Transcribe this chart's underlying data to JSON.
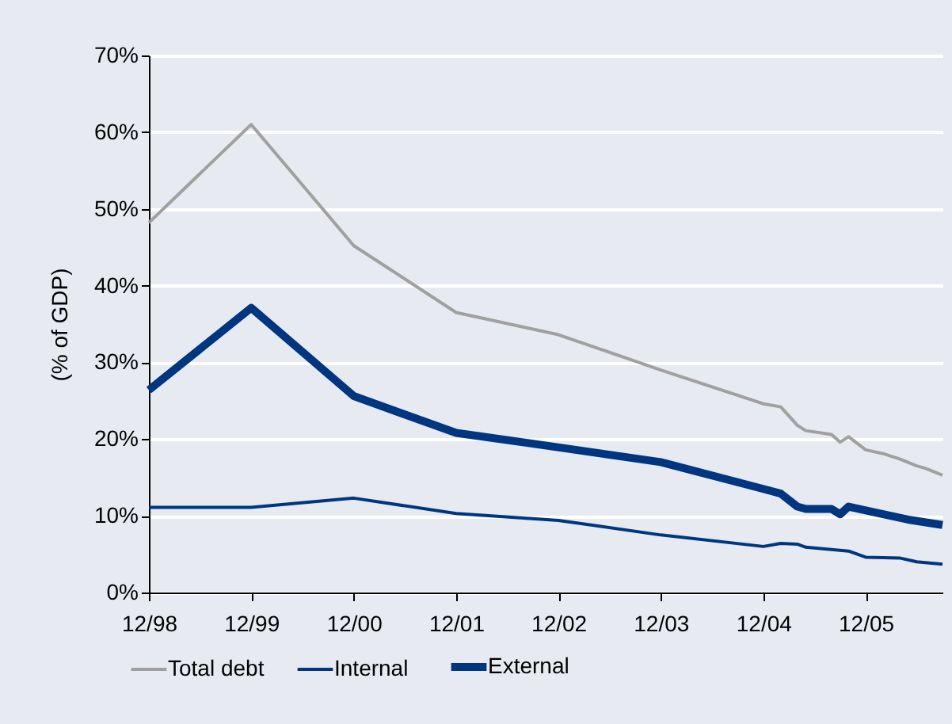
{
  "chart_data": {
    "type": "line",
    "ylabel": "(% of GDP)",
    "xlim": [
      "1998-12",
      "2006-09"
    ],
    "xticks": [
      {
        "value": "1998-12",
        "label": "12/98"
      },
      {
        "value": "1999-12",
        "label": "12/99"
      },
      {
        "value": "2000-12",
        "label": "12/00"
      },
      {
        "value": "2001-12",
        "label": "12/01"
      },
      {
        "value": "2002-12",
        "label": "12/02"
      },
      {
        "value": "2003-12",
        "label": "12/03"
      },
      {
        "value": "2004-12",
        "label": "12/04"
      },
      {
        "value": "2005-12",
        "label": "12/05"
      }
    ],
    "ylim": [
      0,
      70
    ],
    "yticks": [
      {
        "value": 0,
        "label": "0%"
      },
      {
        "value": 10,
        "label": "10%"
      },
      {
        "value": 20,
        "label": "20%"
      },
      {
        "value": 30,
        "label": "30%"
      },
      {
        "value": 40,
        "label": "40%"
      },
      {
        "value": 50,
        "label": "50%"
      },
      {
        "value": 60,
        "label": "60%"
      },
      {
        "value": 70,
        "label": "70%"
      }
    ],
    "grid": "y",
    "legend": "bottom",
    "series": [
      {
        "name": "Total debt",
        "color": "#a0a0a0",
        "x": [
          "1998-12",
          "1999-12",
          "2000-12",
          "2001-12",
          "2002-12",
          "2003-12",
          "2004-12",
          "2005-02",
          "2005-04",
          "2005-05",
          "2005-08",
          "2005-09",
          "2005-10",
          "2005-12",
          "2006-02",
          "2006-04",
          "2006-06",
          "2006-07",
          "2006-09"
        ],
        "values": [
          48.2,
          61,
          45.2,
          36.5,
          33.6,
          29.0,
          24.6,
          24.2,
          21.8,
          21.1,
          20.6,
          19.6,
          20.3,
          18.6,
          18.1,
          17.4,
          16.5,
          16.2,
          15.3
        ]
      },
      {
        "name": "Internal",
        "color": "#003580",
        "x": [
          "1998-12",
          "1999-12",
          "2000-12",
          "2001-12",
          "2002-12",
          "2003-12",
          "2004-12",
          "2005-02",
          "2005-04",
          "2005-05",
          "2005-10",
          "2005-12",
          "2006-04",
          "2006-06",
          "2006-09"
        ],
        "values": [
          11.1,
          11.1,
          12.3,
          10.3,
          9.4,
          7.5,
          6.0,
          6.4,
          6.3,
          5.9,
          5.4,
          4.6,
          4.5,
          4.0,
          3.7
        ]
      },
      {
        "name": "External",
        "color": "#003580",
        "x": [
          "1998-12",
          "1999-12",
          "2000-12",
          "2001-12",
          "2002-09",
          "2003-12",
          "2004-12",
          "2005-02",
          "2005-04",
          "2005-05",
          "2005-08",
          "2005-09",
          "2005-10",
          "2006-02",
          "2006-05",
          "2006-09"
        ],
        "values": [
          26.4,
          37.1,
          25.6,
          20.8,
          19.4,
          17.0,
          13.5,
          12.9,
          11.2,
          10.9,
          10.9,
          10.2,
          11.2,
          10.2,
          9.5,
          8.8
        ]
      }
    ]
  }
}
